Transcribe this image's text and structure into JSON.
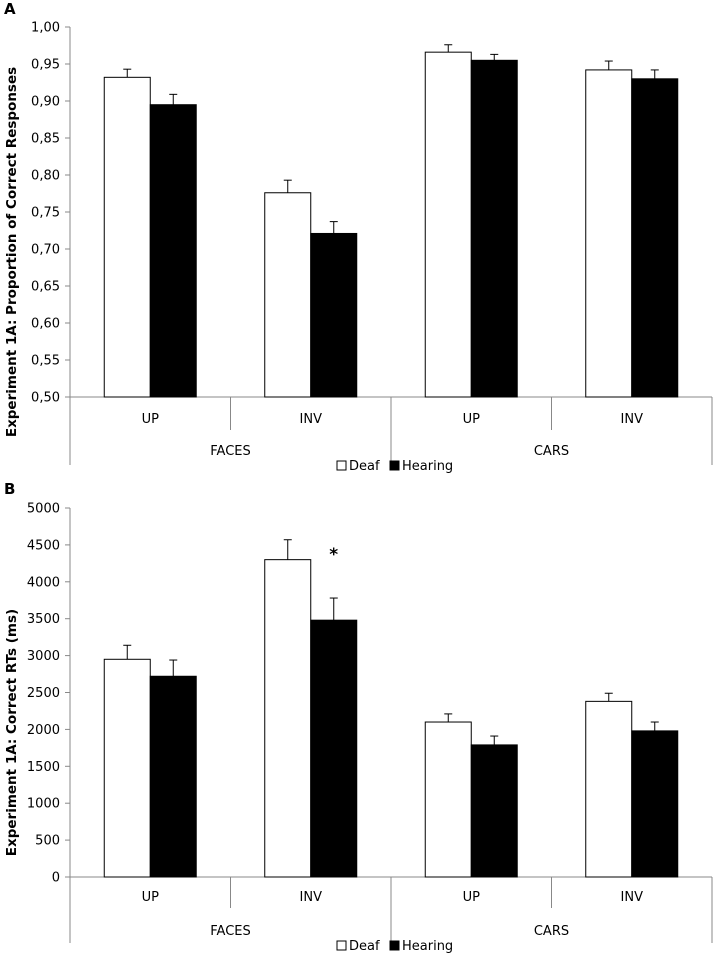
{
  "chart_data": [
    {
      "type": "bar",
      "panel": "A",
      "ylabel": "Experiment 1A: Proportion of Correct Responses",
      "ylim": [
        0.5,
        1.0
      ],
      "yticks": [
        "0,50",
        "0,55",
        "0,60",
        "0,65",
        "0,70",
        "0,75",
        "0,80",
        "0,85",
        "0,90",
        "0,95",
        "1,00"
      ],
      "ytick_values": [
        0.5,
        0.55,
        0.6,
        0.65,
        0.7,
        0.75,
        0.8,
        0.85,
        0.9,
        0.95,
        1.0
      ],
      "categories": [
        "UP",
        "INV",
        "UP",
        "INV"
      ],
      "groups": [
        "FACES",
        "CARS"
      ],
      "series": [
        {
          "name": "Deaf",
          "color": "#ffffff",
          "values": [
            0.932,
            0.776,
            0.966,
            0.942
          ],
          "errors": [
            0.011,
            0.017,
            0.01,
            0.012
          ]
        },
        {
          "name": "Hearing",
          "color": "#000000",
          "values": [
            0.895,
            0.721,
            0.955,
            0.93
          ],
          "errors": [
            0.014,
            0.016,
            0.008,
            0.012
          ]
        }
      ],
      "annotations": [],
      "legend": [
        "Deaf",
        "Hearing"
      ]
    },
    {
      "type": "bar",
      "panel": "B",
      "ylabel": "Experiment 1A: Correct RTs (ms)",
      "ylim": [
        0,
        5000
      ],
      "yticks": [
        "0",
        "500",
        "1000",
        "1500",
        "2000",
        "2500",
        "3000",
        "3500",
        "4000",
        "4500",
        "5000"
      ],
      "ytick_values": [
        0,
        500,
        1000,
        1500,
        2000,
        2500,
        3000,
        3500,
        4000,
        4500,
        5000
      ],
      "categories": [
        "UP",
        "INV",
        "UP",
        "INV"
      ],
      "groups": [
        "FACES",
        "CARS"
      ],
      "series": [
        {
          "name": "Deaf",
          "color": "#ffffff",
          "values": [
            2950,
            4300,
            2100,
            2380
          ],
          "errors": [
            190,
            270,
            110,
            110
          ]
        },
        {
          "name": "Hearing",
          "color": "#000000",
          "values": [
            2720,
            3480,
            1790,
            1980
          ],
          "errors": [
            220,
            300,
            120,
            120
          ]
        }
      ],
      "annotations": [
        {
          "text": "*",
          "category_index": 1,
          "value": 4430
        }
      ],
      "legend": [
        "Deaf",
        "Hearing"
      ]
    }
  ]
}
